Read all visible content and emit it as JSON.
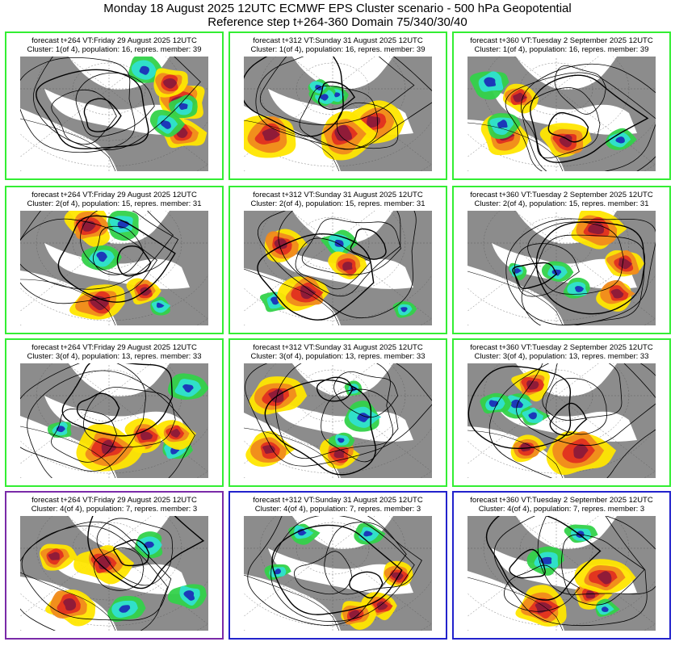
{
  "header": {
    "line1": "Monday 18 August 2025 12UTC ECMWF EPS Cluster scenario - 500 hPa Geopotential",
    "line2": "Reference step t+264-360 Domain 75/340/30/40"
  },
  "colors": {
    "default_border": "#33ee33",
    "purple_border": "#7a2aa8",
    "blue_border": "#2222cc",
    "land": "#8c8c8c",
    "sea": "#ffffff",
    "pos_strong": "#8b1a3a",
    "pos_red": "#e03020",
    "pos_orange": "#f08a1e",
    "pos_yellow": "#ffe600",
    "neg_green": "#33d24a",
    "neg_cyan": "#2fe0d0",
    "neg_blue": "#1b2fb8"
  },
  "panels": [
    {
      "line1": "forecast t+264 VT:Friday 29 August 2025 12UTC",
      "line2": "Cluster: 1(of 4), population: 16, repres. member: 39",
      "border": "green"
    },
    {
      "line1": "forecast t+312 VT:Sunday 31 August 2025 12UTC",
      "line2": "Cluster: 1(of 4), population: 16, repres. member: 39",
      "border": "green"
    },
    {
      "line1": "forecast t+360 VT:Tuesday 2 September 2025 12UTC",
      "line2": "Cluster: 1(of 4), population: 16, repres. member: 39",
      "border": "green"
    },
    {
      "line1": "forecast t+264 VT:Friday 29 August 2025 12UTC",
      "line2": "Cluster: 2(of 4), population: 15, repres. member: 31",
      "border": "green"
    },
    {
      "line1": "forecast t+312 VT:Sunday 31 August 2025 12UTC",
      "line2": "Cluster: 2(of 4), population: 15, repres. member: 31",
      "border": "green"
    },
    {
      "line1": "forecast t+360 VT:Tuesday 2 September 2025 12UTC",
      "line2": "Cluster: 2(of 4), population: 15, repres. member: 31",
      "border": "green"
    },
    {
      "line1": "forecast t+264 VT:Friday 29 August 2025 12UTC",
      "line2": "Cluster: 3(of 4), population: 13, repres. member: 33",
      "border": "green"
    },
    {
      "line1": "forecast t+312 VT:Sunday 31 August 2025 12UTC",
      "line2": "Cluster: 3(of 4), population: 13, repres. member: 33",
      "border": "green"
    },
    {
      "line1": "forecast t+360 VT:Tuesday 2 September 2025 12UTC",
      "line2": "Cluster: 3(of 4), population: 13, repres. member: 33",
      "border": "green"
    },
    {
      "line1": "forecast t+264 VT:Friday 29 August 2025 12UTC",
      "line2": "Cluster: 4(of 4), population: 7, repres. member: 3",
      "border": "purple"
    },
    {
      "line1": "forecast t+312 VT:Sunday 31 August 2025 12UTC",
      "line2": "Cluster: 4(of 4), population: 7, repres. member: 3",
      "border": "blue"
    },
    {
      "line1": "forecast t+360 VT:Tuesday 2 September 2025 12UTC",
      "line2": "Cluster: 4(of 4), population: 7, repres. member: 3",
      "border": "blue"
    }
  ]
}
